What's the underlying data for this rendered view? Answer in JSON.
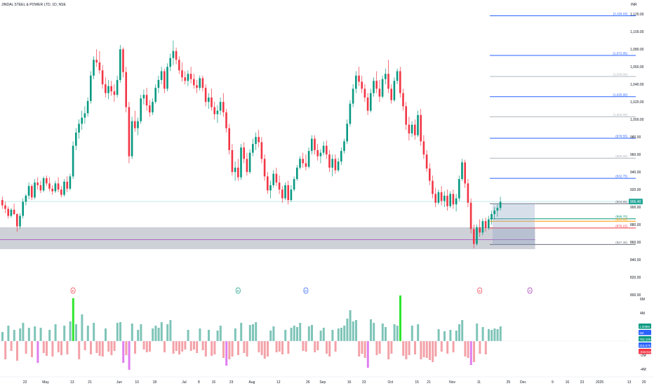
{
  "header": {
    "symbol_title": "JINDAL STEEL & POWER LTD, 1D, NSE",
    "currency": "INR"
  },
  "colors": {
    "up": "#089981",
    "down": "#f23645",
    "volume_up": "#7ec4b8",
    "volume_down": "#f3a2a8",
    "volume_spike_up": "#2ee62e",
    "volume_spike_down": "#e07ef0",
    "zone": "#c5c9d1",
    "fib_blue": "#2962ff",
    "fib_grey": "#b0b4bc",
    "fib_dark": "#6b6f7a",
    "fib_green": "#089981",
    "fib_red": "#f23645"
  },
  "chart_data": {
    "type": "candlestick",
    "y_range": [
      800,
      1125
    ],
    "price_ticks": [
      "1,120.00",
      "1,100.00",
      "1,080.00",
      "1,060.00",
      "1,040.00",
      "1,020.00",
      "1,000.00",
      "980.00",
      "960.00",
      "940.00",
      "920.00",
      "900.00",
      "880.00",
      "860.00",
      "840.00",
      "820.00",
      "800.00"
    ],
    "x_labels": [
      {
        "label": "22",
        "bar": 8
      },
      {
        "label": "May",
        "bar": 15
      },
      {
        "label": "13",
        "bar": 24
      },
      {
        "label": "21",
        "bar": 30
      },
      {
        "label": "Jun",
        "bar": 40
      },
      {
        "label": "10",
        "bar": 46
      },
      {
        "label": "18",
        "bar": 52
      },
      {
        "label": "Jul",
        "bar": 62
      },
      {
        "label": "8",
        "bar": 67
      },
      {
        "label": "15",
        "bar": 72
      },
      {
        "label": "23",
        "bar": 78
      },
      {
        "label": "Aug",
        "bar": 85
      },
      {
        "label": "12",
        "bar": 94
      },
      {
        "label": "26",
        "bar": 104
      },
      {
        "label": "Sep",
        "bar": 109
      },
      {
        "label": "16",
        "bar": 118
      },
      {
        "label": "23",
        "bar": 123
      },
      {
        "label": "Oct",
        "bar": 132
      },
      {
        "label": "15",
        "bar": 141
      },
      {
        "label": "21",
        "bar": 145
      },
      {
        "label": "Nov",
        "bar": 153
      },
      {
        "label": "11",
        "bar": 162
      },
      {
        "label": "25",
        "bar": 172
      },
      {
        "label": "Dec",
        "bar": 177
      },
      {
        "label": "9",
        "bar": 187
      },
      {
        "label": "16",
        "bar": 192
      },
      {
        "label": "23",
        "bar": 197
      },
      {
        "label": "2025",
        "bar": 203
      },
      {
        "label": "13",
        "bar": 213
      },
      {
        "label": "20",
        "bar": 218
      }
    ],
    "last_price_label": "906.40",
    "horizontal_line_price": 906.4,
    "fib_levels": [
      {
        "price": 1118.15,
        "label": "(1,118.15)",
        "tone": "blue"
      },
      {
        "price": 1072.95,
        "label": "(1,072.95)",
        "tone": "blue"
      },
      {
        "price": 1049.0,
        "label": "(1,049.00)",
        "tone": "grey"
      },
      {
        "price": 1025.9,
        "label": "(1,025.90)",
        "tone": "blue"
      },
      {
        "price": 1003.0,
        "label": "(1,003.00)",
        "tone": "grey"
      },
      {
        "price": 978.55,
        "label": "(978.55)",
        "tone": "blue"
      },
      {
        "price": 955.8,
        "label": "(955.80)",
        "tone": "grey"
      },
      {
        "price": 932.75,
        "label": "(932.75)",
        "tone": "blue"
      },
      {
        "price": 903.85,
        "label": "(903.85)",
        "tone": "dark"
      },
      {
        "price": 886.7,
        "label": "(886.70)",
        "tone": "green"
      },
      {
        "price": 883.85,
        "label": "(883.85)",
        "tone": "orange"
      },
      {
        "price": 876.15,
        "label": "(876.15)",
        "tone": "red"
      },
      {
        "price": 857.35,
        "label": "(857.35)",
        "tone": "dark"
      }
    ],
    "zone": {
      "from_bar": -1,
      "to_bar": 180,
      "low": 852,
      "high": 877
    },
    "zone_line_price": 863,
    "box": {
      "from_bar": 167,
      "to_bar": 180,
      "low": 857,
      "high": 904
    },
    "event_markers": [
      {
        "bar": 24,
        "letter": "E",
        "tone": "red"
      },
      {
        "bar": 80,
        "letter": "D",
        "tone": "green"
      },
      {
        "bar": 103,
        "letter": "D",
        "tone": "blue"
      },
      {
        "bar": 162,
        "letter": "E",
        "tone": "red"
      },
      {
        "bar": 179,
        "letter": "A",
        "tone": "purple"
      }
    ],
    "volume": {
      "axis_ticks": [
        "6M",
        "4M",
        "-2M",
        "-4M"
      ],
      "badges": [
        {
          "text": "1.009M",
          "color": "#089981"
        },
        {
          "text": "1M",
          "color": "#2962ff"
        },
        {
          "text": "763.10K",
          "color": "#089981"
        },
        {
          "text": "315.57K",
          "color": "#2962ff"
        },
        {
          "text": "-318.61K",
          "color": "#f23645"
        }
      ]
    },
    "candles": [
      [
        908,
        912,
        898,
        902
      ],
      [
        902,
        906,
        893,
        898
      ],
      [
        898,
        901,
        887,
        890
      ],
      [
        890,
        899,
        888,
        897
      ],
      [
        897,
        904,
        891,
        892
      ],
      [
        892,
        893,
        872,
        878
      ],
      [
        878,
        893,
        875,
        890
      ],
      [
        890,
        910,
        887,
        906
      ],
      [
        906,
        915,
        902,
        913
      ],
      [
        913,
        928,
        909,
        924
      ],
      [
        924,
        926,
        908,
        911
      ],
      [
        911,
        932,
        909,
        928
      ],
      [
        928,
        934,
        920,
        925
      ],
      [
        925,
        930,
        916,
        919
      ],
      [
        919,
        935,
        917,
        933
      ],
      [
        933,
        936,
        924,
        927
      ],
      [
        927,
        934,
        918,
        921
      ],
      [
        921,
        925,
        914,
        918
      ],
      [
        918,
        930,
        916,
        927
      ],
      [
        927,
        934,
        917,
        920
      ],
      [
        920,
        924,
        911,
        914
      ],
      [
        914,
        932,
        912,
        929
      ],
      [
        929,
        935,
        917,
        921
      ],
      [
        921,
        938,
        919,
        935
      ],
      [
        935,
        975,
        932,
        970
      ],
      [
        970,
        990,
        965,
        985
      ],
      [
        985,
        1000,
        978,
        995
      ],
      [
        995,
        1010,
        988,
        1002
      ],
      [
        1002,
        1015,
        995,
        1007
      ],
      [
        1007,
        1025,
        1003,
        1021
      ],
      [
        1021,
        1055,
        1018,
        1050
      ],
      [
        1050,
        1072,
        1046,
        1068
      ],
      [
        1068,
        1080,
        1060,
        1065
      ],
      [
        1065,
        1078,
        1052,
        1056
      ],
      [
        1056,
        1062,
        1035,
        1040
      ],
      [
        1040,
        1048,
        1025,
        1030
      ],
      [
        1030,
        1045,
        1023,
        1038
      ],
      [
        1038,
        1044,
        1027,
        1032
      ],
      [
        1032,
        1040,
        1020,
        1028
      ],
      [
        1028,
        1050,
        1025,
        1045
      ],
      [
        1045,
        1085,
        1042,
        1080
      ],
      [
        1080,
        1082,
        1048,
        1054
      ],
      [
        1054,
        1060,
        1008,
        1014
      ],
      [
        1014,
        1020,
        950,
        958
      ],
      [
        958,
        1003,
        955,
        998
      ],
      [
        998,
        1010,
        986,
        990
      ],
      [
        990,
        1002,
        982,
        998
      ],
      [
        998,
        1028,
        995,
        1024
      ],
      [
        1024,
        1034,
        1017,
        1028
      ],
      [
        1028,
        1036,
        1010,
        1016
      ],
      [
        1016,
        1022,
        1003,
        1008
      ],
      [
        1008,
        1024,
        1005,
        1020
      ],
      [
        1020,
        1040,
        1018,
        1036
      ],
      [
        1036,
        1050,
        1030,
        1045
      ],
      [
        1045,
        1060,
        1040,
        1055
      ],
      [
        1055,
        1058,
        1030,
        1035
      ],
      [
        1035,
        1064,
        1032,
        1060
      ],
      [
        1060,
        1075,
        1055,
        1070
      ],
      [
        1070,
        1090,
        1062,
        1078
      ],
      [
        1078,
        1082,
        1063,
        1068
      ],
      [
        1068,
        1072,
        1052,
        1056
      ],
      [
        1056,
        1065,
        1043,
        1048
      ],
      [
        1048,
        1055,
        1040,
        1044
      ],
      [
        1044,
        1056,
        1038,
        1052
      ],
      [
        1052,
        1060,
        1041,
        1046
      ],
      [
        1046,
        1052,
        1035,
        1039
      ],
      [
        1039,
        1045,
        1030,
        1036
      ],
      [
        1036,
        1050,
        1033,
        1047
      ],
      [
        1047,
        1050,
        1032,
        1036
      ],
      [
        1036,
        1040,
        1015,
        1020
      ],
      [
        1020,
        1030,
        1012,
        1025
      ],
      [
        1025,
        1035,
        1010,
        1014
      ],
      [
        1014,
        1020,
        1000,
        1006
      ],
      [
        1006,
        1016,
        996,
        1010
      ],
      [
        1010,
        1025,
        1005,
        1020
      ],
      [
        1020,
        1030,
        1003,
        1008
      ],
      [
        1008,
        1012,
        985,
        990
      ],
      [
        990,
        995,
        960,
        965
      ],
      [
        965,
        972,
        936,
        940
      ],
      [
        940,
        952,
        930,
        945
      ],
      [
        945,
        955,
        930,
        934
      ],
      [
        934,
        972,
        931,
        968
      ],
      [
        968,
        974,
        950,
        955
      ],
      [
        955,
        962,
        936,
        940
      ],
      [
        940,
        966,
        938,
        962
      ],
      [
        962,
        978,
        958,
        972
      ],
      [
        972,
        985,
        965,
        980
      ],
      [
        980,
        988,
        968,
        974
      ],
      [
        974,
        980,
        950,
        955
      ],
      [
        955,
        960,
        930,
        935
      ],
      [
        935,
        940,
        915,
        919
      ],
      [
        919,
        930,
        910,
        925
      ],
      [
        925,
        942,
        922,
        938
      ],
      [
        938,
        945,
        924,
        928
      ],
      [
        928,
        936,
        915,
        920
      ],
      [
        920,
        924,
        905,
        910
      ],
      [
        910,
        928,
        908,
        925
      ],
      [
        925,
        930,
        903,
        908
      ],
      [
        908,
        925,
        906,
        920
      ],
      [
        920,
        935,
        918,
        932
      ],
      [
        932,
        948,
        930,
        945
      ],
      [
        945,
        958,
        943,
        955
      ],
      [
        955,
        962,
        945,
        950
      ],
      [
        950,
        960,
        942,
        946
      ],
      [
        946,
        968,
        944,
        964
      ],
      [
        964,
        982,
        960,
        978
      ],
      [
        978,
        982,
        960,
        965
      ],
      [
        965,
        972,
        953,
        958
      ],
      [
        958,
        966,
        950,
        962
      ],
      [
        962,
        975,
        959,
        970
      ],
      [
        970,
        976,
        955,
        960
      ],
      [
        960,
        965,
        940,
        945
      ],
      [
        945,
        960,
        935,
        955
      ],
      [
        955,
        960,
        938,
        942
      ],
      [
        942,
        956,
        940,
        952
      ],
      [
        952,
        968,
        948,
        964
      ],
      [
        964,
        978,
        961,
        975
      ],
      [
        975,
        1000,
        972,
        995
      ],
      [
        995,
        1022,
        992,
        1018
      ],
      [
        1018,
        1040,
        1014,
        1035
      ],
      [
        1035,
        1055,
        1030,
        1050
      ],
      [
        1050,
        1060,
        1038,
        1043
      ],
      [
        1043,
        1050,
        1030,
        1035
      ],
      [
        1035,
        1040,
        1020,
        1025
      ],
      [
        1025,
        1030,
        1005,
        1010
      ],
      [
        1010,
        1035,
        1008,
        1030
      ],
      [
        1030,
        1048,
        1026,
        1044
      ],
      [
        1044,
        1055,
        1030,
        1035
      ],
      [
        1035,
        1045,
        1020,
        1026
      ],
      [
        1026,
        1050,
        1024,
        1046
      ],
      [
        1046,
        1058,
        1040,
        1052
      ],
      [
        1052,
        1068,
        1030,
        1035
      ],
      [
        1035,
        1040,
        1018,
        1022
      ],
      [
        1022,
        1048,
        1020,
        1044
      ],
      [
        1044,
        1058,
        1040,
        1055
      ],
      [
        1055,
        1060,
        1025,
        1030
      ],
      [
        1030,
        1035,
        1010,
        1015
      ],
      [
        1015,
        1020,
        988,
        994
      ],
      [
        994,
        1003,
        976,
        984
      ],
      [
        984,
        998,
        980,
        994
      ],
      [
        994,
        1000,
        977,
        982
      ],
      [
        982,
        1010,
        980,
        1005
      ],
      [
        1005,
        1012,
        970,
        975
      ],
      [
        975,
        982,
        955,
        960
      ],
      [
        960,
        965,
        940,
        944
      ],
      [
        944,
        950,
        925,
        930
      ],
      [
        930,
        936,
        910,
        915
      ],
      [
        915,
        922,
        900,
        905
      ],
      [
        905,
        920,
        903,
        917
      ],
      [
        917,
        924,
        902,
        907
      ],
      [
        907,
        918,
        900,
        913
      ],
      [
        913,
        920,
        896,
        901
      ],
      [
        901,
        918,
        899,
        915
      ],
      [
        915,
        920,
        898,
        903
      ],
      [
        903,
        915,
        895,
        910
      ],
      [
        910,
        936,
        907,
        932
      ],
      [
        932,
        955,
        930,
        951
      ],
      [
        951,
        954,
        922,
        927
      ],
      [
        927,
        932,
        900,
        905
      ],
      [
        905,
        910,
        870,
        875
      ],
      [
        875,
        880,
        853,
        858
      ],
      [
        858,
        880,
        856,
        877
      ],
      [
        877,
        886,
        866,
        871
      ],
      [
        871,
        887,
        868,
        884
      ],
      [
        884,
        888,
        872,
        876
      ],
      [
        876,
        890,
        874,
        886
      ],
      [
        886,
        896,
        880,
        892
      ],
      [
        892,
        900,
        886,
        896
      ],
      [
        896,
        903,
        889,
        899
      ],
      [
        899,
        912,
        896,
        906
      ]
    ],
    "volumes": [
      1.3,
      -2.6,
      2.2,
      -1.4,
      1.6,
      -2.8,
      1.8,
      2.6,
      -1.8,
      1.9,
      -2.3,
      2.1,
      -3.1,
      1.9,
      -1.7,
      -2.1,
      1.6,
      -2.2,
      2.4,
      -1.6,
      -2.0,
      2.2,
      -1.9,
      2.8,
      6.1,
      2.4,
      -2.6,
      3.8,
      -1.3,
      2.2,
      -1.9,
      2.6,
      -1.7,
      -2.1,
      -2.2,
      1.8,
      -1.5,
      -2.0,
      -1.4,
      2.6,
      2.7,
      -3.1,
      -2.0,
      -4.1,
      2.5,
      -1.8,
      1.6,
      2.4,
      -1.2,
      -1.6,
      -1.5,
      1.8,
      2.2,
      1.9,
      2.7,
      -1.6,
      2.4,
      3.0,
      -1.8,
      -1.4,
      -1.9,
      -1.5,
      -1.2,
      1.6,
      -1.4,
      -1.2,
      -1.7,
      1.8,
      -1.3,
      -2.2,
      1.6,
      -2.1,
      -1.9,
      1.5,
      2.2,
      -2.4,
      -3.5,
      -2.6,
      -2.2,
      1.8,
      -2.0,
      2.6,
      -1.7,
      -2.2,
      2.3,
      2.4,
      2.7,
      -1.6,
      -2.0,
      -2.5,
      -2.2,
      1.5,
      2.1,
      -1.6,
      -1.5,
      -1.9,
      1.6,
      -1.8,
      1.9,
      2.2,
      2.0,
      2.6,
      -1.4,
      -1.5,
      2.1,
      2.3,
      -1.6,
      -1.3,
      1.5,
      1.9,
      -1.8,
      -2.2,
      1.6,
      -1.5,
      1.8,
      1.9,
      2.2,
      3.2,
      4.4,
      2.8,
      3.0,
      -2.2,
      -1.8,
      -2.4,
      -3.8,
      3.1,
      2.6,
      -2.0,
      -1.8,
      2.5,
      2.0,
      -2.6,
      -1.8,
      2.4,
      2.2,
      6.5,
      -2.1,
      -2.6,
      -2.0,
      2.2,
      -1.9,
      2.4,
      -2.6,
      -2.3,
      -2.4,
      -2.7,
      -3.0,
      -2.2,
      1.7,
      -1.5,
      1.4,
      -1.8,
      1.6,
      -1.6,
      1.5,
      2.4,
      3.0,
      -2.2,
      -2.4,
      -3.4,
      -3.0,
      2.5,
      -1.8,
      2.0,
      -1.9,
      1.7,
      1.6,
      1.8,
      1.7,
      2.1
    ]
  }
}
